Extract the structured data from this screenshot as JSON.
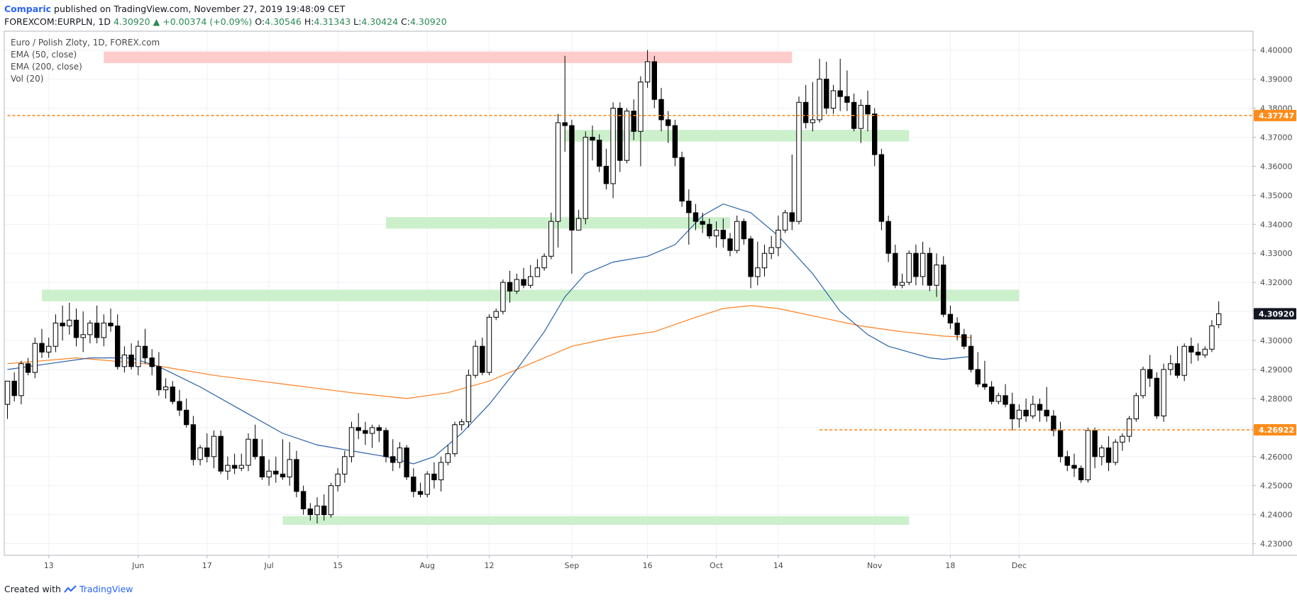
{
  "header": {
    "publisher": "Comparic",
    "published_text": "published on TradingView.com, November 27, 2019 19:48:09 CET",
    "symbol": "FOREXCOM:EURPLN, 1D",
    "last": "4.30920",
    "change": "+0.00374 (+0.09%)",
    "open_label": "O:",
    "open": "4.30546",
    "high_label": "H:",
    "high": "4.31343",
    "low_label": "L:",
    "low": "4.30424",
    "close_label": "C:",
    "close": "4.30920"
  },
  "legend": {
    "title": "Euro / Polish Zloty, 1D, FOREX.com",
    "ema50": "EMA (50, close)",
    "ema200": "EMA (200, close)",
    "vol": "Vol (20)"
  },
  "footer": {
    "created_with": "Created with",
    "brand": "TradingView"
  },
  "colors": {
    "up_candle": "#ffffff",
    "down_candle": "#000000",
    "ema50": "#2962a8",
    "ema200": "#ff7f20",
    "resistance_zone": "#ffc9c9",
    "support_zone": "#c9efc9",
    "hline": "#ff8c1a",
    "grid": "#eef1f6"
  },
  "chart_data": {
    "type": "candlestick",
    "title": "Euro / Polish Zloty, 1D, FOREX.com",
    "ylim": [
      4.226,
      4.4065
    ],
    "y_ticks": [
      "4.23000",
      "4.24000",
      "4.25000",
      "4.26000",
      "4.27000",
      "4.28000",
      "4.29000",
      "4.30000",
      "4.31000",
      "4.32000",
      "4.33000",
      "4.34000",
      "4.35000",
      "4.36000",
      "4.37000",
      "4.38000",
      "4.39000",
      "4.40000"
    ],
    "x_ticks": [
      {
        "label": "13",
        "index": 6
      },
      {
        "label": "Jun",
        "index": 19
      },
      {
        "label": "17",
        "index": 29
      },
      {
        "label": "Jul",
        "index": 38
      },
      {
        "label": "15",
        "index": 48
      },
      {
        "label": "Aug",
        "index": 61
      },
      {
        "label": "12",
        "index": 70
      },
      {
        "label": "Sep",
        "index": 82
      },
      {
        "label": "16",
        "index": 93
      },
      {
        "label": "Oct",
        "index": 103
      },
      {
        "label": "14",
        "index": 112
      },
      {
        "label": "Nov",
        "index": 126
      },
      {
        "label": "18",
        "index": 137
      },
      {
        "label": "Dec",
        "index": 147
      }
    ],
    "price_labels": [
      {
        "value": 4.37747,
        "text": "4.37747",
        "color": "#ff8c1a"
      },
      {
        "value": 4.3092,
        "text": "4.30920",
        "color": "#131722"
      },
      {
        "value": 4.26922,
        "text": "4.26922",
        "color": "#ff8c1a"
      }
    ],
    "hlines": [
      {
        "value": 4.37747,
        "from_index": 0,
        "to_index": 155
      },
      {
        "value": 4.26922,
        "from_index": 118,
        "to_index": 155
      }
    ],
    "zones": [
      {
        "kind": "resistance",
        "y_top": 4.3995,
        "y_bottom": 4.3955,
        "from_index": 14,
        "to_index": 114
      },
      {
        "kind": "support",
        "y_top": 4.3725,
        "y_bottom": 4.3685,
        "from_index": 81,
        "to_index": 131
      },
      {
        "kind": "support",
        "y_top": 4.3425,
        "y_bottom": 4.3385,
        "from_index": 55,
        "to_index": 105
      },
      {
        "kind": "support",
        "y_top": 4.3175,
        "y_bottom": 4.3135,
        "from_index": 5,
        "to_index": 147
      },
      {
        "kind": "support",
        "y_top": 4.2395,
        "y_bottom": 4.2365,
        "from_index": 40,
        "to_index": 131
      }
    ],
    "candles": [
      [
        4.278,
        4.286,
        4.273,
        4.286
      ],
      [
        4.286,
        4.289,
        4.279,
        4.281
      ],
      [
        4.281,
        4.293,
        4.278,
        4.292
      ],
      [
        4.292,
        4.294,
        4.288,
        4.289
      ],
      [
        4.289,
        4.301,
        4.287,
        4.299
      ],
      [
        4.299,
        4.304,
        4.294,
        4.296
      ],
      [
        4.296,
        4.301,
        4.294,
        4.298
      ],
      [
        4.298,
        4.309,
        4.296,
        4.306
      ],
      [
        4.306,
        4.312,
        4.3,
        4.305
      ],
      [
        4.305,
        4.313,
        4.302,
        4.307
      ],
      [
        4.307,
        4.311,
        4.298,
        4.301
      ],
      [
        4.301,
        4.31,
        4.296,
        4.302
      ],
      [
        4.302,
        4.307,
        4.299,
        4.306
      ],
      [
        4.306,
        4.312,
        4.299,
        4.301
      ],
      [
        4.301,
        4.309,
        4.298,
        4.306
      ],
      [
        4.306,
        4.311,
        4.303,
        4.305
      ],
      [
        4.305,
        4.309,
        4.29,
        4.291
      ],
      [
        4.291,
        4.298,
        4.289,
        4.295
      ],
      [
        4.295,
        4.299,
        4.29,
        4.291
      ],
      [
        4.291,
        4.3,
        4.288,
        4.298
      ],
      [
        4.298,
        4.304,
        4.292,
        4.294
      ],
      [
        4.294,
        4.297,
        4.288,
        4.291
      ],
      [
        4.291,
        4.296,
        4.281,
        4.283
      ],
      [
        4.283,
        4.287,
        4.28,
        4.284
      ],
      [
        4.284,
        4.286,
        4.278,
        4.279
      ],
      [
        4.279,
        4.283,
        4.274,
        4.276
      ],
      [
        4.276,
        4.28,
        4.27,
        4.271
      ],
      [
        4.271,
        4.274,
        4.257,
        4.259
      ],
      [
        4.259,
        4.264,
        4.257,
        4.263
      ],
      [
        4.263,
        4.268,
        4.258,
        4.26
      ],
      [
        4.26,
        4.269,
        4.256,
        4.267
      ],
      [
        4.267,
        4.269,
        4.254,
        4.255
      ],
      [
        4.255,
        4.26,
        4.252,
        4.257
      ],
      [
        4.257,
        4.261,
        4.254,
        4.256
      ],
      [
        4.256,
        4.261,
        4.255,
        4.257
      ],
      [
        4.257,
        4.268,
        4.255,
        4.266
      ],
      [
        4.266,
        4.271,
        4.259,
        4.26
      ],
      [
        4.26,
        4.266,
        4.252,
        4.253
      ],
      [
        4.253,
        4.259,
        4.25,
        4.255
      ],
      [
        4.255,
        4.26,
        4.251,
        4.254
      ],
      [
        4.254,
        4.266,
        4.252,
        4.253
      ],
      [
        4.253,
        4.265,
        4.25,
        4.259
      ],
      [
        4.259,
        4.262,
        4.246,
        4.248
      ],
      [
        4.248,
        4.25,
        4.24,
        4.242
      ],
      [
        4.242,
        4.244,
        4.238,
        4.24
      ],
      [
        4.24,
        4.246,
        4.237,
        4.243
      ],
      [
        4.243,
        4.247,
        4.238,
        4.24
      ],
      [
        4.24,
        4.251,
        4.239,
        4.25
      ],
      [
        4.25,
        4.256,
        4.248,
        4.254
      ],
      [
        4.254,
        4.262,
        4.251,
        4.26
      ],
      [
        4.26,
        4.272,
        4.258,
        4.27
      ],
      [
        4.27,
        4.275,
        4.266,
        4.269
      ],
      [
        4.269,
        4.272,
        4.264,
        4.268
      ],
      [
        4.268,
        4.271,
        4.263,
        4.27
      ],
      [
        4.27,
        4.271,
        4.265,
        4.269
      ],
      [
        4.269,
        4.27,
        4.258,
        4.26
      ],
      [
        4.26,
        4.266,
        4.255,
        4.258
      ],
      [
        4.258,
        4.265,
        4.256,
        4.263
      ],
      [
        4.263,
        4.264,
        4.252,
        4.253
      ],
      [
        4.253,
        4.256,
        4.246,
        4.248
      ],
      [
        4.248,
        4.251,
        4.246,
        4.247
      ],
      [
        4.247,
        4.255,
        4.246,
        4.254
      ],
      [
        4.254,
        4.258,
        4.249,
        4.252
      ],
      [
        4.252,
        4.26,
        4.248,
        4.258
      ],
      [
        4.258,
        4.264,
        4.257,
        4.261
      ],
      [
        4.261,
        4.272,
        4.26,
        4.271
      ],
      [
        4.271,
        4.273,
        4.269,
        4.272
      ],
      [
        4.272,
        4.29,
        4.27,
        4.288
      ],
      [
        4.288,
        4.3,
        4.287,
        4.298
      ],
      [
        4.298,
        4.301,
        4.288,
        4.289
      ],
      [
        4.289,
        4.309,
        4.288,
        4.308
      ],
      [
        4.308,
        4.311,
        4.307,
        4.31
      ],
      [
        4.31,
        4.321,
        4.309,
        4.32
      ],
      [
        4.32,
        4.324,
        4.313,
        4.317
      ],
      [
        4.317,
        4.323,
        4.316,
        4.321
      ],
      [
        4.321,
        4.325,
        4.318,
        4.319
      ],
      [
        4.319,
        4.326,
        4.318,
        4.322
      ],
      [
        4.322,
        4.328,
        4.322,
        4.325
      ],
      [
        4.325,
        4.33,
        4.324,
        4.329
      ],
      [
        4.329,
        4.344,
        4.328,
        4.341
      ],
      [
        4.341,
        4.378,
        4.332,
        4.375
      ],
      [
        4.375,
        4.398,
        4.365,
        4.374
      ],
      [
        4.374,
        4.376,
        4.323,
        4.338
      ],
      [
        4.338,
        4.345,
        4.338,
        4.342
      ],
      [
        4.342,
        4.372,
        4.34,
        4.37
      ],
      [
        4.37,
        4.374,
        4.362,
        4.369
      ],
      [
        4.369,
        4.371,
        4.358,
        4.36
      ],
      [
        4.36,
        4.366,
        4.352,
        4.354
      ],
      [
        4.354,
        4.382,
        4.349,
        4.38
      ],
      [
        4.38,
        4.382,
        4.358,
        4.362
      ],
      [
        4.362,
        4.38,
        4.361,
        4.379
      ],
      [
        4.379,
        4.383,
        4.369,
        4.372
      ],
      [
        4.372,
        4.391,
        4.36,
        4.389
      ],
      [
        4.389,
        4.4,
        4.387,
        4.396
      ],
      [
        4.396,
        4.398,
        4.38,
        4.383
      ],
      [
        4.383,
        4.387,
        4.372,
        4.376
      ],
      [
        4.376,
        4.379,
        4.368,
        4.374
      ],
      [
        4.374,
        4.376,
        4.36,
        4.363
      ],
      [
        4.363,
        4.365,
        4.346,
        4.348
      ],
      [
        4.348,
        4.352,
        4.333,
        4.344
      ],
      [
        4.344,
        4.347,
        4.338,
        4.341
      ],
      [
        4.341,
        4.344,
        4.337,
        4.34
      ],
      [
        4.34,
        4.342,
        4.335,
        4.336
      ],
      [
        4.336,
        4.341,
        4.332,
        4.338
      ],
      [
        4.338,
        4.342,
        4.332,
        4.335
      ],
      [
        4.335,
        4.337,
        4.329,
        4.331
      ],
      [
        4.331,
        4.343,
        4.33,
        4.341
      ],
      [
        4.341,
        4.342,
        4.333,
        4.335
      ],
      [
        4.335,
        4.336,
        4.318,
        4.322
      ],
      [
        4.322,
        4.334,
        4.319,
        4.325
      ],
      [
        4.325,
        4.333,
        4.322,
        4.33
      ],
      [
        4.33,
        4.336,
        4.328,
        4.332
      ],
      [
        4.332,
        4.343,
        4.329,
        4.338
      ],
      [
        4.338,
        4.345,
        4.337,
        4.344
      ],
      [
        4.344,
        4.364,
        4.338,
        4.341
      ],
      [
        4.341,
        4.384,
        4.34,
        4.382
      ],
      [
        4.382,
        4.388,
        4.373,
        4.375
      ],
      [
        4.375,
        4.389,
        4.372,
        4.376
      ],
      [
        4.376,
        4.397,
        4.375,
        4.39
      ],
      [
        4.39,
        4.396,
        4.378,
        4.38
      ],
      [
        4.38,
        4.388,
        4.378,
        4.386
      ],
      [
        4.386,
        4.397,
        4.379,
        4.384
      ],
      [
        4.384,
        4.393,
        4.379,
        4.382
      ],
      [
        4.382,
        4.385,
        4.372,
        4.373
      ],
      [
        4.373,
        4.383,
        4.368,
        4.381
      ],
      [
        4.381,
        4.386,
        4.372,
        4.378
      ],
      [
        4.378,
        4.38,
        4.36,
        4.364
      ],
      [
        4.364,
        4.366,
        4.338,
        4.341
      ],
      [
        4.341,
        4.343,
        4.327,
        4.33
      ],
      [
        4.33,
        4.333,
        4.318,
        4.319
      ],
      [
        4.319,
        4.323,
        4.318,
        4.32
      ],
      [
        4.32,
        4.331,
        4.319,
        4.33
      ],
      [
        4.33,
        4.333,
        4.319,
        4.322
      ],
      [
        4.322,
        4.334,
        4.319,
        4.33
      ],
      [
        4.33,
        4.332,
        4.317,
        4.319
      ],
      [
        4.319,
        4.33,
        4.315,
        4.326
      ],
      [
        4.326,
        4.329,
        4.308,
        4.309
      ],
      [
        4.309,
        4.312,
        4.304,
        4.306
      ],
      [
        4.306,
        4.308,
        4.3,
        4.302
      ],
      [
        4.302,
        4.304,
        4.297,
        4.298
      ],
      [
        4.298,
        4.302,
        4.289,
        4.29
      ],
      [
        4.29,
        4.296,
        4.284,
        4.285
      ],
      [
        4.285,
        4.293,
        4.283,
        4.284
      ],
      [
        4.284,
        4.286,
        4.278,
        4.279
      ],
      [
        4.279,
        4.282,
        4.278,
        4.281
      ],
      [
        4.281,
        4.285,
        4.277,
        4.278
      ],
      [
        4.278,
        4.282,
        4.269,
        4.273
      ]
    ],
    "candles_tail": [
      [
        4.273,
        4.278,
        4.27,
        4.276
      ],
      [
        4.276,
        4.28,
        4.272,
        4.274
      ],
      [
        4.274,
        4.281,
        4.273,
        4.278
      ],
      [
        4.278,
        4.28,
        4.272,
        4.276
      ],
      [
        4.276,
        4.284,
        4.272,
        4.274
      ],
      [
        4.274,
        4.276,
        4.267,
        4.269
      ],
      [
        4.269,
        4.272,
        4.258,
        4.26
      ],
      [
        4.26,
        4.262,
        4.255,
        4.257
      ],
      [
        4.257,
        4.261,
        4.253,
        4.256
      ],
      [
        4.256,
        4.257,
        4.251,
        4.252
      ],
      [
        4.252,
        4.27,
        4.251,
        4.269
      ],
      [
        4.269,
        4.27,
        4.256,
        4.26
      ],
      [
        4.26,
        4.264,
        4.257,
        4.263
      ],
      [
        4.263,
        4.267,
        4.255,
        4.258
      ],
      [
        4.258,
        4.266,
        4.257,
        4.265
      ],
      [
        4.265,
        4.268,
        4.262,
        4.267
      ],
      [
        4.267,
        4.274,
        4.265,
        4.273
      ],
      [
        4.273,
        4.282,
        4.272,
        4.281
      ],
      [
        4.281,
        4.291,
        4.28,
        4.29
      ],
      [
        4.29,
        4.295,
        4.284,
        4.287
      ],
      [
        4.287,
        4.289,
        4.273,
        4.274
      ],
      [
        4.274,
        4.292,
        4.272,
        4.29
      ],
      [
        4.29,
        4.295,
        4.288,
        4.292
      ],
      [
        4.292,
        4.298,
        4.287,
        4.288
      ],
      [
        4.288,
        4.299,
        4.286,
        4.298
      ],
      [
        4.298,
        4.301,
        4.292,
        4.296
      ],
      [
        4.296,
        4.299,
        4.293,
        4.295
      ],
      [
        4.295,
        4.298,
        4.294,
        4.297
      ],
      [
        4.297,
        4.307,
        4.296,
        4.305
      ],
      [
        4.30546,
        4.31343,
        4.30424,
        4.3092
      ]
    ],
    "ema50": [
      [
        0,
        4.29
      ],
      [
        6,
        4.292
      ],
      [
        12,
        4.294
      ],
      [
        18,
        4.294
      ],
      [
        22,
        4.291
      ],
      [
        28,
        4.284
      ],
      [
        34,
        4.276
      ],
      [
        40,
        4.268
      ],
      [
        45,
        4.264
      ],
      [
        50,
        4.262
      ],
      [
        55,
        4.26
      ],
      [
        59,
        4.2575
      ],
      [
        62,
        4.26
      ],
      [
        66,
        4.268
      ],
      [
        70,
        4.278
      ],
      [
        74,
        4.29
      ],
      [
        78,
        4.303
      ],
      [
        81,
        4.315
      ],
      [
        84,
        4.323
      ],
      [
        88,
        4.327
      ],
      [
        93,
        4.329
      ],
      [
        97,
        4.333
      ],
      [
        101,
        4.343
      ],
      [
        104,
        4.347
      ],
      [
        108,
        4.344
      ],
      [
        112,
        4.336
      ],
      [
        117,
        4.323
      ],
      [
        121,
        4.31
      ],
      [
        125,
        4.302
      ],
      [
        128,
        4.298
      ],
      [
        131,
        4.296
      ],
      [
        134,
        4.294
      ],
      [
        136,
        4.2935
      ],
      [
        138,
        4.294
      ],
      [
        140,
        4.2945
      ]
    ],
    "ema200": [
      [
        0,
        4.292
      ],
      [
        10,
        4.294
      ],
      [
        20,
        4.292
      ],
      [
        30,
        4.288
      ],
      [
        40,
        4.285
      ],
      [
        50,
        4.282
      ],
      [
        58,
        4.28
      ],
      [
        64,
        4.282
      ],
      [
        70,
        4.286
      ],
      [
        76,
        4.292
      ],
      [
        82,
        4.298
      ],
      [
        88,
        4.301
      ],
      [
        94,
        4.303
      ],
      [
        100,
        4.308
      ],
      [
        104,
        4.311
      ],
      [
        108,
        4.312
      ],
      [
        112,
        4.311
      ],
      [
        118,
        4.308
      ],
      [
        124,
        4.305
      ],
      [
        130,
        4.303
      ],
      [
        136,
        4.3015
      ],
      [
        140,
        4.301
      ]
    ]
  }
}
